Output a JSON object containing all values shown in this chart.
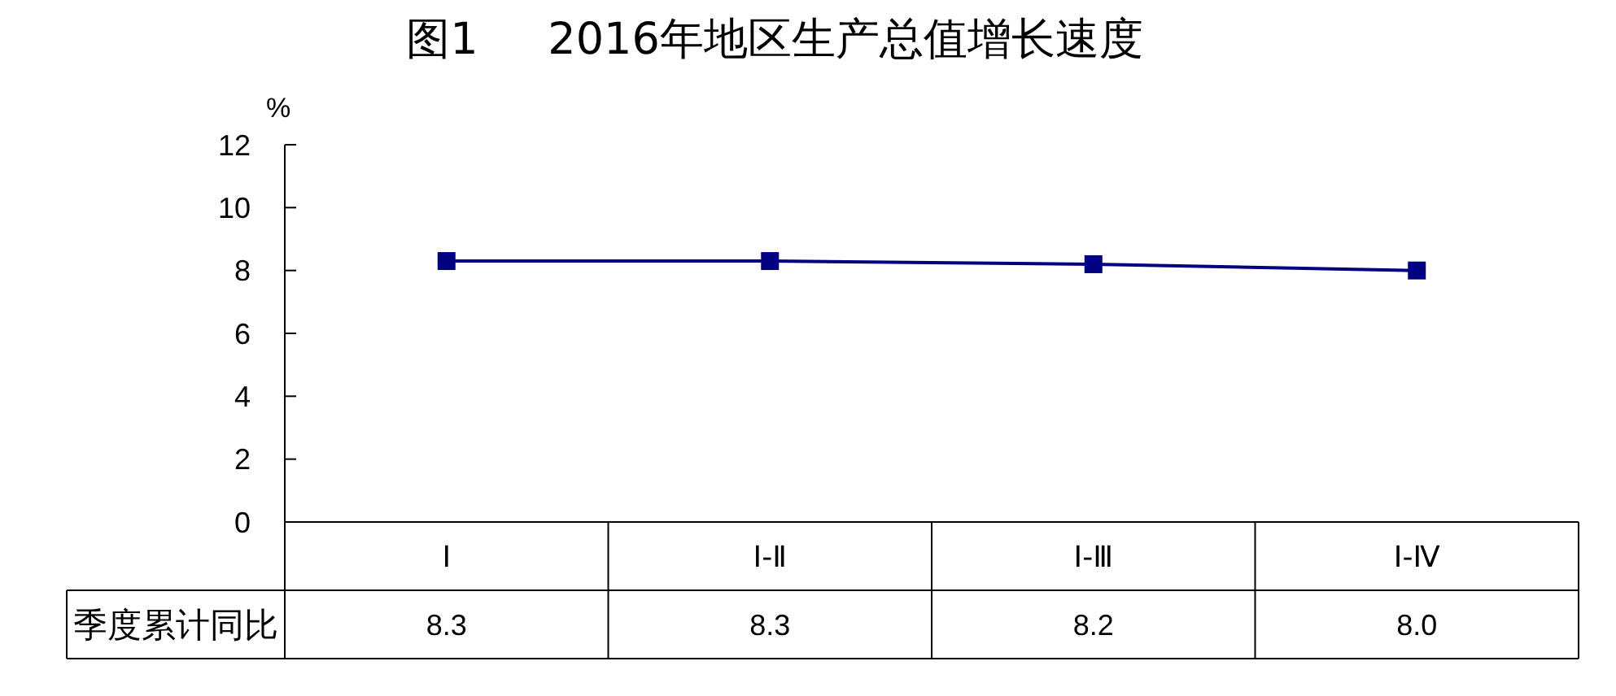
{
  "chart_data": {
    "type": "line",
    "title": "图1     2016年地区生产总值增长速度",
    "ylabel": "%",
    "categories": [
      "Ⅰ",
      "Ⅰ-Ⅱ",
      "Ⅰ-Ⅲ",
      "Ⅰ-Ⅳ"
    ],
    "series": [
      {
        "name": "季度累计同比",
        "color": "#000080",
        "values": [
          8.3,
          8.3,
          8.2,
          8.0
        ],
        "value_labels": [
          "8.3",
          "8.3",
          "8.2",
          "8.0"
        ]
      }
    ],
    "ylim": [
      0,
      12
    ],
    "yticks": [
      0,
      2,
      4,
      6,
      8,
      10,
      12
    ],
    "marker": "square",
    "line_style": "solid"
  }
}
